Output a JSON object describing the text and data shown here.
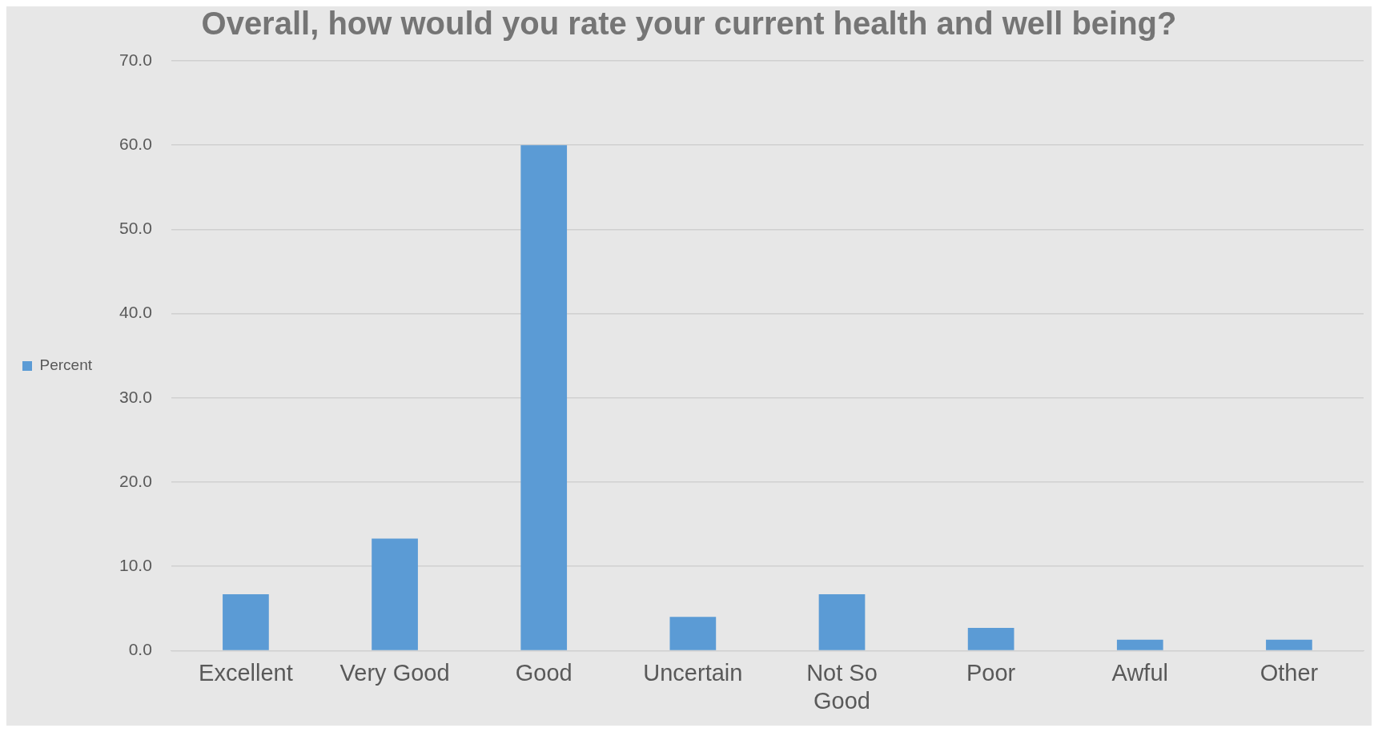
{
  "chart_data": {
    "type": "bar",
    "title": "Overall, how would you rate your current health and well being?",
    "categories": [
      "Excellent",
      "Very Good",
      "Good",
      "Uncertain",
      "Not So Good",
      "Poor",
      "Awful",
      "Other"
    ],
    "series": [
      {
        "name": "Percent",
        "color": "#5b9bd5",
        "values": [
          6.7,
          13.3,
          60.0,
          4.0,
          6.7,
          2.7,
          1.3,
          1.3
        ]
      }
    ],
    "ylim": [
      0,
      70
    ],
    "yticks": [
      {
        "value": 0,
        "label": "0.0"
      },
      {
        "value": 10,
        "label": "10.0"
      },
      {
        "value": 20,
        "label": "20.0"
      },
      {
        "value": 30,
        "label": "30.0"
      },
      {
        "value": 40,
        "label": "40.0"
      },
      {
        "value": 50,
        "label": "50.0"
      },
      {
        "value": 60,
        "label": "60.0"
      },
      {
        "value": 70,
        "label": "70.0"
      }
    ],
    "grid": "y",
    "legend": "left"
  }
}
